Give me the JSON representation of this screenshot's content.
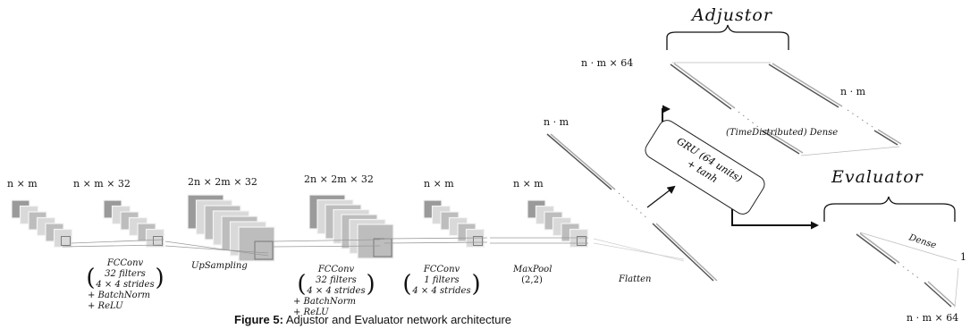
{
  "labels": {
    "adjustor_title": "Adjustor",
    "evaluator_title": "Evaluator",
    "adjustor_input_dim": "n · m × 64",
    "adjustor_output_dim": "n · m",
    "flatten_dim": "n · m",
    "evaluator_input_dim": "n · m × 64",
    "evaluator_output": "1",
    "dense_label": "Dense",
    "time_distributed_dense": "(TimeDistributed) Dense",
    "flatten": "Flatten",
    "gru_line1": "GRU (64 units)",
    "gru_line2": "+ tanh"
  },
  "layers": [
    {
      "dim": "n × m"
    },
    {
      "dim": "n × m × 32",
      "op": "FCConv",
      "paren1": "32 filters",
      "paren2": "4 × 4 strides",
      "extra1": "+ BatchNorm",
      "extra2": "+ ReLU"
    },
    {
      "dim": "2n × 2m × 32",
      "op": "UpSampling"
    },
    {
      "dim": "2n × 2m × 32",
      "op": "FCConv",
      "paren1": "32 filters",
      "paren2": "4 × 4 strides",
      "extra1": "+ BatchNorm",
      "extra2": "+ ReLU"
    },
    {
      "dim": "n × m",
      "op": "FCConv",
      "paren1": "1 filters",
      "paren2": "4 × 4 strides"
    },
    {
      "dim": "n × m",
      "op": "MaxPool",
      "op2": "(2,2)"
    }
  ],
  "caption": {
    "prefix": "Figure 5:",
    "text": "Adjustor and Evaluator network architecture"
  }
}
